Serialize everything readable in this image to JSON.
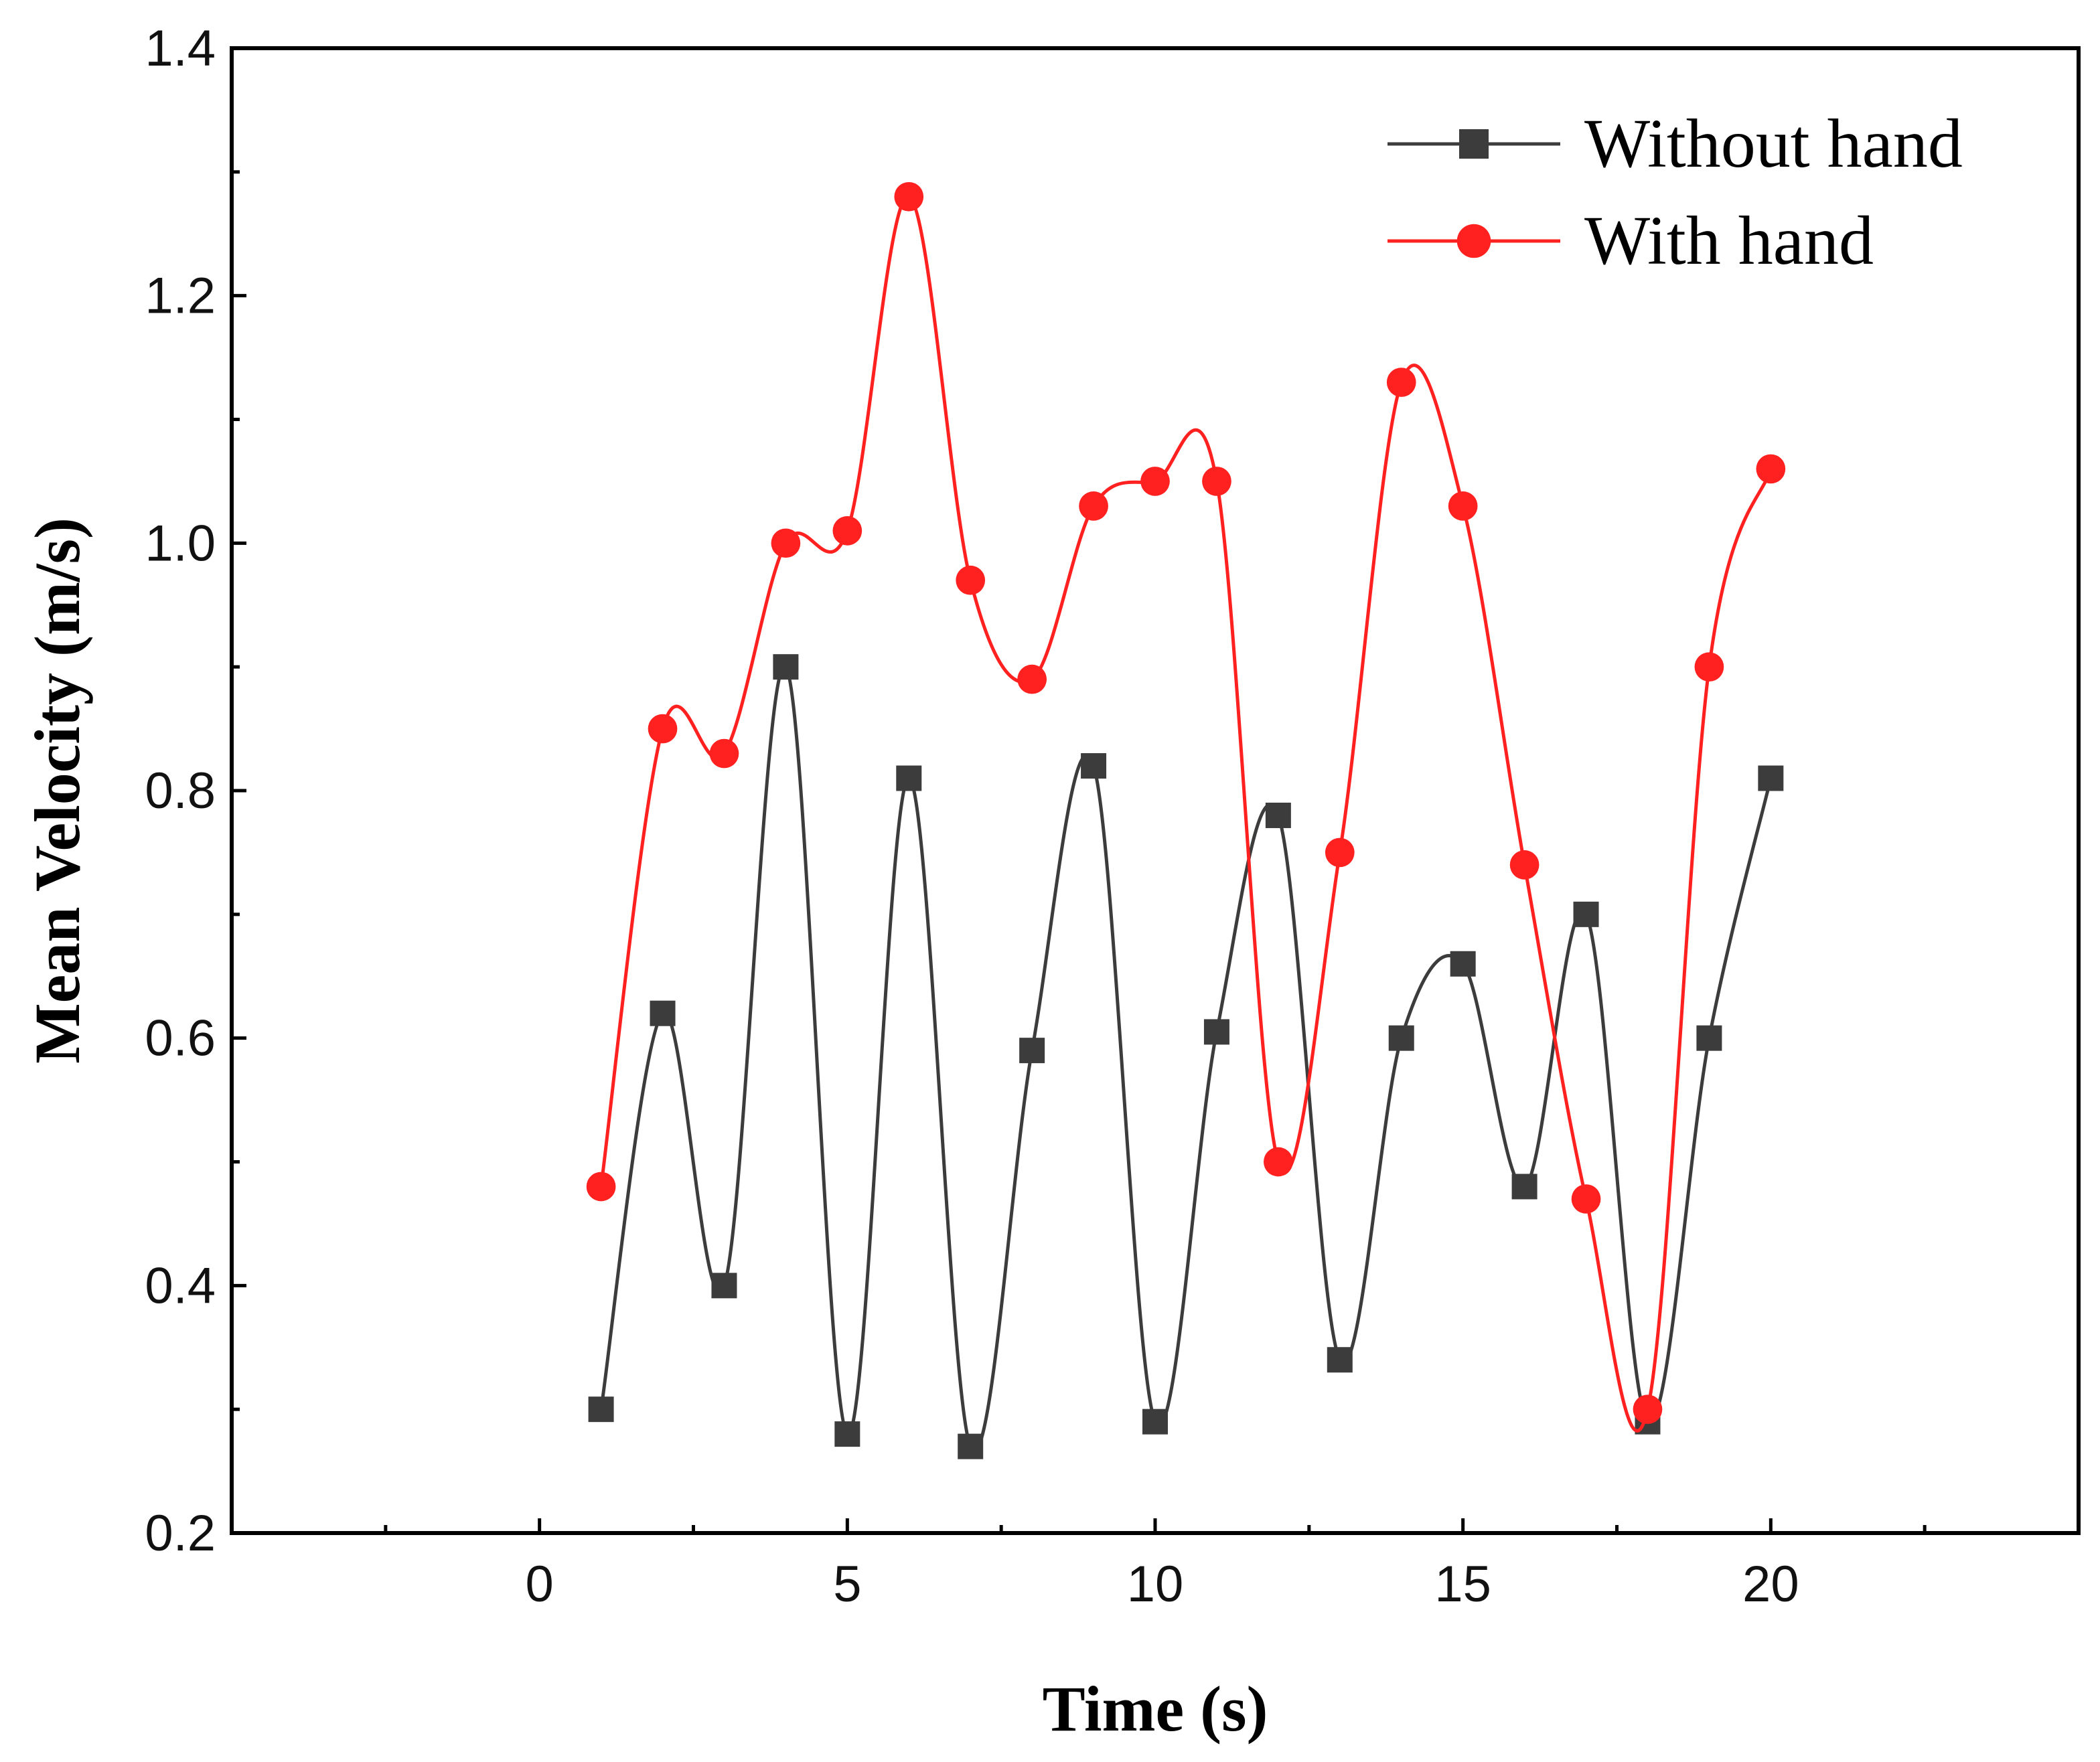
{
  "chart_data": {
    "type": "line",
    "title": "",
    "xlabel": "Time (s)",
    "ylabel": "Mean Velocity (m/s)",
    "xlim": [
      -5,
      25
    ],
    "ylim": [
      0.2,
      1.4
    ],
    "xticks": [
      0,
      5,
      10,
      15,
      20
    ],
    "xtick_labels": [
      "0",
      "5",
      "10",
      "15",
      "20"
    ],
    "yticks": [
      0.2,
      0.4,
      0.6,
      0.8,
      1.0,
      1.2,
      1.4
    ],
    "ytick_labels": [
      "0.2",
      "0.4",
      "0.6",
      "0.8",
      "1.0",
      "1.2",
      "1.4"
    ],
    "grid": false,
    "legend_position": "top-right",
    "x": [
      1,
      2,
      3,
      4,
      5,
      6,
      7,
      8,
      9,
      10,
      11,
      12,
      13,
      14,
      15,
      16,
      17,
      18,
      19,
      20
    ],
    "series": [
      {
        "name": "Without hand",
        "color": "#3c3c3c",
        "marker": "square",
        "values": [
          0.3,
          0.62,
          0.4,
          0.9,
          0.28,
          0.81,
          0.27,
          0.59,
          0.82,
          0.29,
          0.605,
          0.78,
          0.34,
          0.6,
          0.66,
          0.48,
          0.7,
          0.29,
          0.6,
          0.81
        ]
      },
      {
        "name": "With hand",
        "color": "#ff2020",
        "marker": "circle",
        "values": [
          0.48,
          0.85,
          0.83,
          1.0,
          1.01,
          1.28,
          0.97,
          0.89,
          1.03,
          1.05,
          1.05,
          0.5,
          0.75,
          1.13,
          1.03,
          0.74,
          0.47,
          0.3,
          0.9,
          1.06
        ]
      }
    ]
  }
}
